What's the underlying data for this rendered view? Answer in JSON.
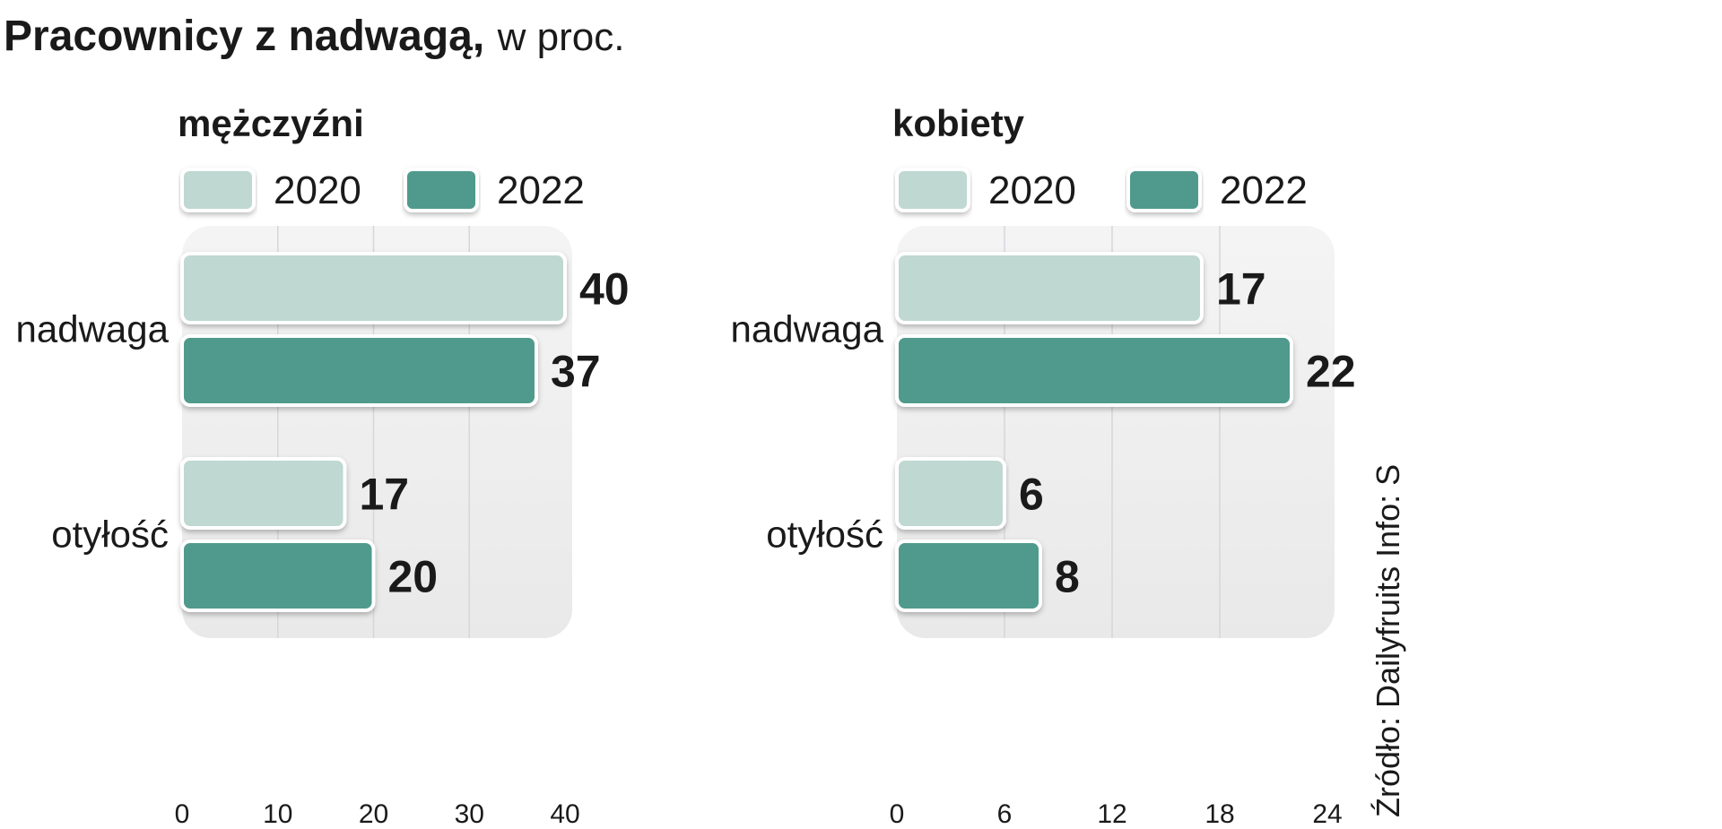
{
  "title": {
    "bold": "Pracownicy z nadwagą,",
    "normal": "w proc."
  },
  "source": "Źródło: Dailyfruits  Info: S",
  "colors": {
    "2020": "#bfd8d1",
    "2022": "#4f9a8c",
    "plot_bg": "#efefef",
    "grid": "#d6d6dc"
  },
  "chart_data": [
    {
      "type": "bar",
      "orientation": "horizontal",
      "title": "mężczyźni",
      "categories": [
        "nadwaga",
        "otyłość"
      ],
      "series": [
        {
          "name": "2020",
          "values": [
            40,
            17
          ]
        },
        {
          "name": "2022",
          "values": [
            37,
            20
          ]
        }
      ],
      "xlim": [
        0,
        40
      ],
      "xticks": [
        0,
        10,
        20,
        30,
        40
      ],
      "grid": true,
      "legend": "top"
    },
    {
      "type": "bar",
      "orientation": "horizontal",
      "title": "kobiety",
      "categories": [
        "nadwaga",
        "otyłość"
      ],
      "series": [
        {
          "name": "2020",
          "values": [
            17,
            6
          ]
        },
        {
          "name": "2022",
          "values": [
            22,
            8
          ]
        }
      ],
      "xlim": [
        0,
        24
      ],
      "xticks": [
        0,
        6,
        12,
        18,
        24
      ],
      "grid": true,
      "legend": "top"
    }
  ]
}
